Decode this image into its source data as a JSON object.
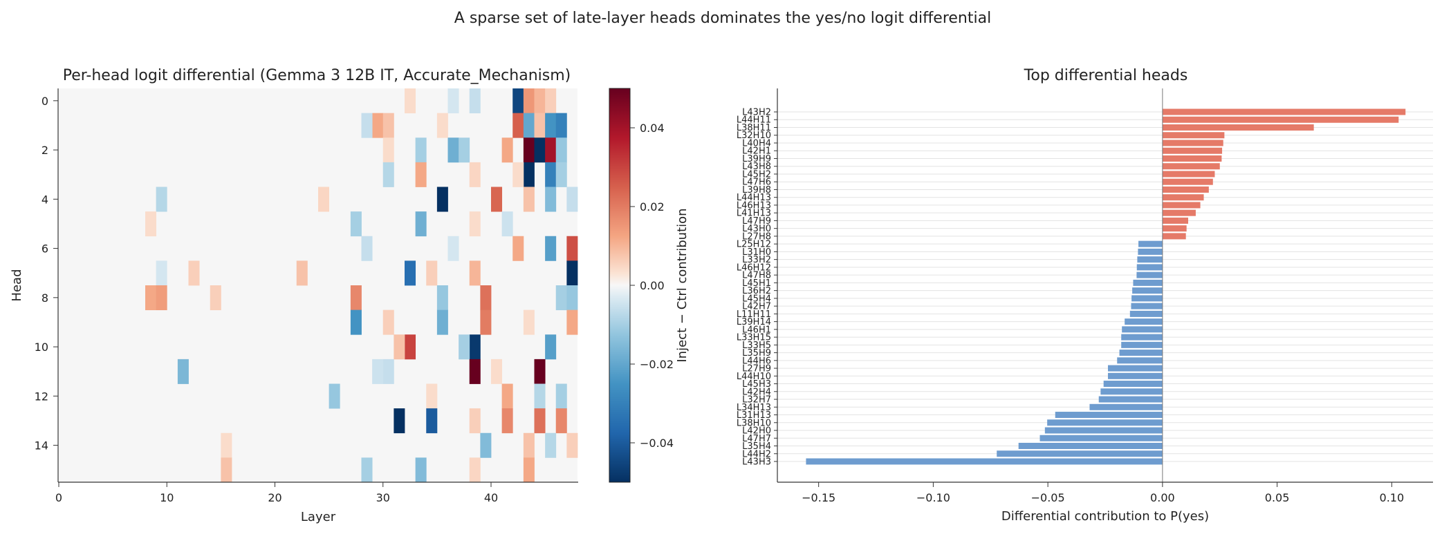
{
  "suptitle": "A sparse set of late-layer heads dominates the yes/no logit differential",
  "chart_data": [
    {
      "type": "heatmap",
      "title": "Per-head logit differential (Gemma 3 12B IT, Accurate_Mechanism)",
      "xlabel": "Layer",
      "ylabel": "Head",
      "xlim": [
        0,
        48
      ],
      "ylim": [
        0,
        16
      ],
      "x_ticks": [
        0,
        10,
        20,
        30,
        40
      ],
      "y_ticks": [
        0,
        2,
        4,
        6,
        8,
        10,
        12,
        14
      ],
      "colorbar": {
        "label": "Inject − Ctrl contribution",
        "range": [
          -0.05,
          0.05
        ],
        "ticks": [
          0.04,
          0.02,
          0.0,
          -0.02,
          -0.04
        ],
        "tick_labels": [
          "0.04",
          "0.02",
          "0.00",
          "−0.02",
          "−0.04"
        ],
        "colormap": "RdBu_r"
      },
      "cells": [
        [
          42,
          0,
          -0.045
        ],
        [
          43,
          0,
          0.015
        ],
        [
          44,
          0,
          0.01
        ],
        [
          45,
          0,
          0.006
        ],
        [
          38,
          0,
          -0.006
        ],
        [
          36,
          0,
          -0.004
        ],
        [
          32,
          0,
          0.004
        ],
        [
          42,
          1,
          0.025
        ],
        [
          43,
          1,
          -0.02
        ],
        [
          44,
          1,
          0.008
        ],
        [
          45,
          1,
          -0.025
        ],
        [
          46,
          1,
          -0.03
        ],
        [
          29,
          1,
          0.012
        ],
        [
          30,
          1,
          0.008
        ],
        [
          28,
          1,
          -0.006
        ],
        [
          35,
          1,
          0.004
        ],
        [
          43,
          2,
          0.05
        ],
        [
          44,
          2,
          -0.05
        ],
        [
          45,
          2,
          0.04
        ],
        [
          46,
          2,
          -0.012
        ],
        [
          33,
          2,
          -0.01
        ],
        [
          36,
          2,
          -0.018
        ],
        [
          37,
          2,
          -0.01
        ],
        [
          41,
          2,
          0.012
        ],
        [
          30,
          2,
          0.004
        ],
        [
          43,
          3,
          -0.05
        ],
        [
          45,
          3,
          -0.03
        ],
        [
          46,
          3,
          -0.01
        ],
        [
          33,
          3,
          0.012
        ],
        [
          30,
          3,
          -0.008
        ],
        [
          38,
          3,
          0.005
        ],
        [
          42,
          3,
          0.004
        ],
        [
          35,
          4,
          -0.05
        ],
        [
          40,
          4,
          0.024
        ],
        [
          45,
          4,
          -0.015
        ],
        [
          43,
          4,
          0.008
        ],
        [
          47,
          4,
          -0.006
        ],
        [
          24,
          4,
          0.005
        ],
        [
          9,
          4,
          -0.008
        ],
        [
          27,
          5,
          -0.01
        ],
        [
          33,
          5,
          -0.018
        ],
        [
          38,
          5,
          0.004
        ],
        [
          41,
          5,
          -0.005
        ],
        [
          8,
          5,
          0.004
        ],
        [
          45,
          6,
          -0.022
        ],
        [
          47,
          6,
          0.028
        ],
        [
          42,
          6,
          0.012
        ],
        [
          28,
          6,
          -0.006
        ],
        [
          36,
          6,
          -0.004
        ],
        [
          32,
          7,
          -0.035
        ],
        [
          47,
          7,
          -0.05
        ],
        [
          38,
          7,
          0.01
        ],
        [
          34,
          7,
          0.006
        ],
        [
          22,
          7,
          0.008
        ],
        [
          12,
          7,
          0.006
        ],
        [
          9,
          7,
          -0.004
        ],
        [
          8,
          8,
          0.012
        ],
        [
          9,
          8,
          0.014
        ],
        [
          27,
          8,
          0.018
        ],
        [
          35,
          8,
          -0.012
        ],
        [
          39,
          8,
          0.022
        ],
        [
          46,
          8,
          -0.01
        ],
        [
          47,
          8,
          -0.012
        ],
        [
          14,
          8,
          0.006
        ],
        [
          27,
          9,
          -0.025
        ],
        [
          35,
          9,
          -0.018
        ],
        [
          39,
          9,
          0.02
        ],
        [
          47,
          9,
          0.012
        ],
        [
          30,
          9,
          0.006
        ],
        [
          43,
          9,
          0.004
        ],
        [
          32,
          10,
          0.03
        ],
        [
          38,
          10,
          -0.048
        ],
        [
          37,
          10,
          -0.01
        ],
        [
          45,
          10,
          -0.022
        ],
        [
          31,
          10,
          0.008
        ],
        [
          38,
          11,
          0.05
        ],
        [
          44,
          11,
          0.05
        ],
        [
          11,
          11,
          -0.016
        ],
        [
          30,
          11,
          -0.006
        ],
        [
          29,
          11,
          -0.005
        ],
        [
          40,
          11,
          0.004
        ],
        [
          25,
          12,
          -0.012
        ],
        [
          41,
          12,
          0.012
        ],
        [
          44,
          12,
          -0.008
        ],
        [
          46,
          12,
          -0.01
        ],
        [
          34,
          12,
          0.004
        ],
        [
          31,
          13,
          -0.05
        ],
        [
          34,
          13,
          -0.04
        ],
        [
          41,
          13,
          0.018
        ],
        [
          44,
          13,
          0.022
        ],
        [
          46,
          13,
          0.018
        ],
        [
          38,
          13,
          0.006
        ],
        [
          39,
          14,
          -0.015
        ],
        [
          43,
          14,
          0.008
        ],
        [
          45,
          14,
          -0.008
        ],
        [
          47,
          14,
          0.006
        ],
        [
          15,
          14,
          0.004
        ],
        [
          15,
          15,
          0.008
        ],
        [
          28,
          15,
          -0.01
        ],
        [
          33,
          15,
          -0.015
        ],
        [
          43,
          15,
          0.012
        ],
        [
          38,
          15,
          0.005
        ]
      ]
    },
    {
      "type": "bar",
      "orientation": "horizontal",
      "title": "Top differential heads",
      "xlabel": "Differential contribution to P(yes)",
      "xlim": [
        -0.168,
        0.118
      ],
      "x_ticks": [
        -0.15,
        -0.1,
        -0.05,
        0.0,
        0.05,
        0.1
      ],
      "x_tick_labels": [
        "−0.15",
        "−0.10",
        "−0.05",
        "0.00",
        "0.05",
        "0.10"
      ],
      "positive_color": "#e57a68",
      "negative_color": "#6e9ccf",
      "categories": [
        "L43H2",
        "L44H11",
        "L38H11",
        "L32H10",
        "L40H4",
        "L42H1",
        "L39H9",
        "L43H8",
        "L45H2",
        "L47H6",
        "L39H8",
        "L44H13",
        "L46H13",
        "L41H13",
        "L47H9",
        "L43H0",
        "L27H8",
        "L25H12",
        "L31H0",
        "L33H2",
        "L46H12",
        "L47H8",
        "L45H1",
        "L36H2",
        "L45H4",
        "L42H7",
        "L11H11",
        "L39H14",
        "L46H1",
        "L33H15",
        "L33H5",
        "L35H9",
        "L44H6",
        "L27H9",
        "L44H10",
        "L45H3",
        "L42H4",
        "L32H7",
        "L34H13",
        "L31H13",
        "L38H10",
        "L42H0",
        "L47H7",
        "L35H4",
        "L44H2",
        "L43H3"
      ],
      "values": [
        0.106,
        0.103,
        0.066,
        0.027,
        0.0265,
        0.026,
        0.0258,
        0.025,
        0.0228,
        0.022,
        0.0202,
        0.018,
        0.0165,
        0.0145,
        0.0112,
        0.0105,
        0.0102,
        -0.0105,
        -0.0107,
        -0.011,
        -0.0112,
        -0.0113,
        -0.0128,
        -0.0132,
        -0.0135,
        -0.0137,
        -0.0142,
        -0.0165,
        -0.0177,
        -0.018,
        -0.018,
        -0.0188,
        -0.0198,
        -0.0238,
        -0.0238,
        -0.0257,
        -0.027,
        -0.0278,
        -0.0318,
        -0.0468,
        -0.0503,
        -0.0513,
        -0.0535,
        -0.0628,
        -0.0723,
        -0.1555
      ]
    }
  ]
}
